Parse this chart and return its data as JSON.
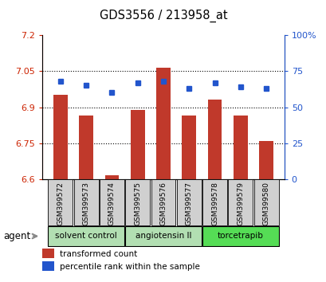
{
  "title": "GDS3556 / 213958_at",
  "samples": [
    "GSM399572",
    "GSM399573",
    "GSM399574",
    "GSM399575",
    "GSM399576",
    "GSM399577",
    "GSM399578",
    "GSM399579",
    "GSM399580"
  ],
  "transformed_count": [
    6.95,
    6.865,
    6.615,
    6.89,
    7.065,
    6.865,
    6.93,
    6.865,
    6.76
  ],
  "percentile_rank": [
    68,
    65,
    60,
    67,
    68,
    63,
    67,
    64,
    63
  ],
  "ylim_left": [
    6.6,
    7.2
  ],
  "ylim_right": [
    0,
    100
  ],
  "yticks_left": [
    6.6,
    6.75,
    6.9,
    7.05,
    7.2
  ],
  "yticks_right": [
    0,
    25,
    50,
    75,
    100
  ],
  "ytick_labels_left": [
    "6.6",
    "6.75",
    "6.9",
    "7.05",
    "7.2"
  ],
  "ytick_labels_right": [
    "0",
    "25",
    "50",
    "75",
    "100%"
  ],
  "hlines": [
    6.75,
    6.9,
    7.05
  ],
  "bar_color": "#c0392b",
  "dot_color": "#2255cc",
  "bar_width": 0.55,
  "bar_bottom": 6.6,
  "group_info": [
    {
      "label": "solvent control",
      "start": 0,
      "end": 2,
      "color": "#b2dfb2"
    },
    {
      "label": "angiotensin II",
      "start": 3,
      "end": 5,
      "color": "#b2dfb2"
    },
    {
      "label": "torcetrapib",
      "start": 6,
      "end": 8,
      "color": "#55dd55"
    }
  ],
  "agent_label": "agent",
  "legend_transformed": "transformed count",
  "legend_percentile": "percentile rank within the sample",
  "left_axis_color": "#cc2200",
  "right_axis_color": "#2255cc",
  "bg_color": "#ffffff",
  "xtick_box_color": "#d0d0d0"
}
